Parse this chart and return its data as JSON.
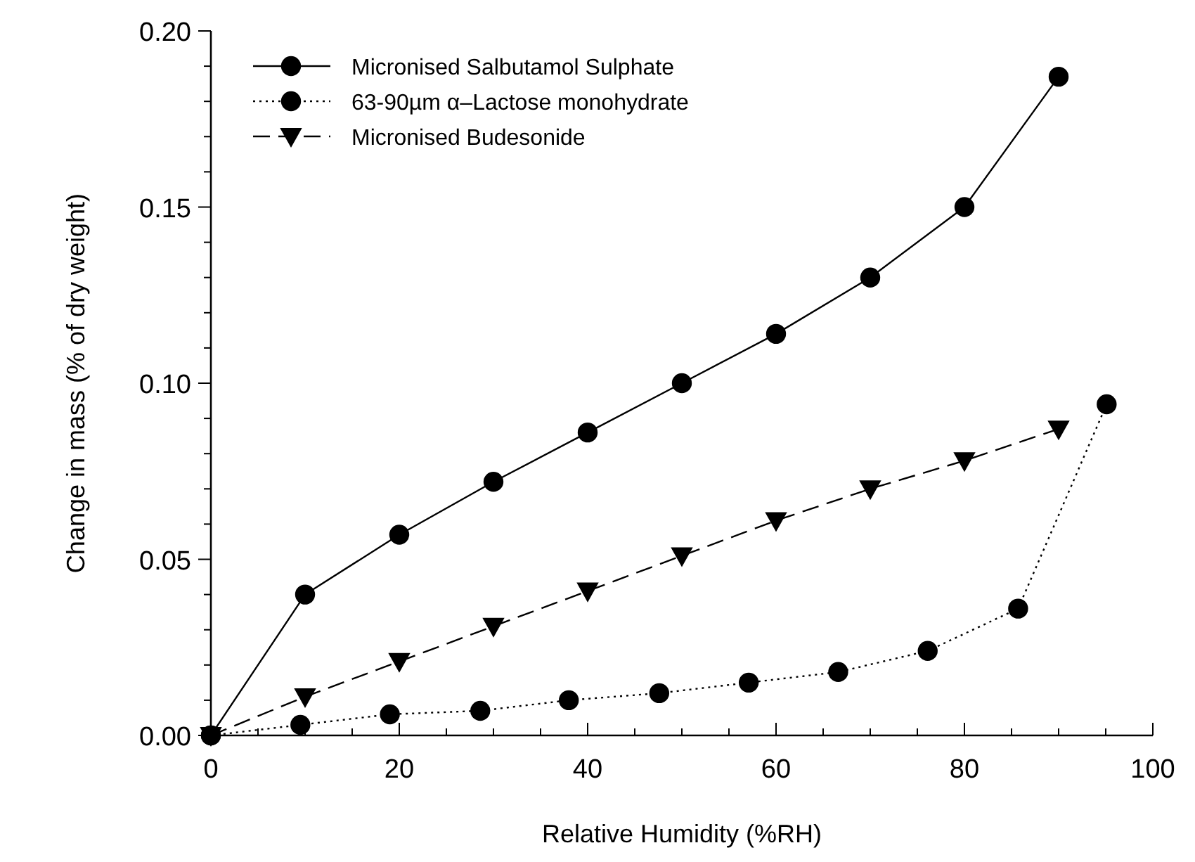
{
  "chart_data": {
    "type": "line",
    "xlabel": "Relative Humidity (%RH)",
    "ylabel": "Change in mass (% of dry weight)",
    "xlim": [
      0,
      100
    ],
    "ylim": [
      0,
      0.2
    ],
    "xticks": [
      0,
      {
        "value": 5,
        "label": null
      },
      {
        "value": 10,
        "label": null
      },
      {
        "value": 15,
        "label": null
      },
      20,
      {
        "value": 25,
        "label": null
      },
      {
        "value": 30,
        "label": null
      },
      {
        "value": 35,
        "label": null
      },
      40,
      {
        "value": 45,
        "label": null
      },
      {
        "value": 50,
        "label": null
      },
      {
        "value": 55,
        "label": null
      },
      60,
      {
        "value": 65,
        "label": null
      },
      {
        "value": 70,
        "label": null
      },
      {
        "value": 75,
        "label": null
      },
      80,
      {
        "value": 85,
        "label": null
      },
      {
        "value": 90,
        "label": null
      },
      {
        "value": 95,
        "label": null
      },
      100
    ],
    "yticks": [
      {
        "value": 0,
        "label": "0.00"
      },
      {
        "value": 0.01,
        "label": null
      },
      {
        "value": 0.02,
        "label": null
      },
      {
        "value": 0.03,
        "label": null
      },
      {
        "value": 0.04,
        "label": null
      },
      {
        "value": 0.05,
        "label": "0.05"
      },
      {
        "value": 0.06,
        "label": null
      },
      {
        "value": 0.07,
        "label": null
      },
      {
        "value": 0.08,
        "label": null
      },
      {
        "value": 0.09,
        "label": null
      },
      {
        "value": 0.1,
        "label": "0.10"
      },
      {
        "value": 0.11,
        "label": null
      },
      {
        "value": 0.12,
        "label": null
      },
      {
        "value": 0.13,
        "label": null
      },
      {
        "value": 0.14,
        "label": null
      },
      {
        "value": 0.15,
        "label": "0.15"
      },
      {
        "value": 0.16,
        "label": null
      },
      {
        "value": 0.17,
        "label": null
      },
      {
        "value": 0.18,
        "label": null
      },
      {
        "value": 0.19,
        "label": null
      },
      {
        "value": 0.2,
        "label": "0.20"
      }
    ],
    "grid": false,
    "legend": "top left",
    "series": [
      {
        "name": "Micronised Salbutamol Sulphate",
        "color": "#000000",
        "marker": "circle",
        "line_style": "solid",
        "x": [
          0,
          10,
          20,
          30,
          40,
          50,
          60,
          70,
          80,
          90
        ],
        "values": [
          0,
          0.04,
          0.057,
          0.072,
          0.086,
          0.1,
          0.114,
          0.13,
          0.15,
          0.187
        ]
      },
      {
        "name": "63-90µm α–Lactose monohydrate",
        "color": "#000000",
        "marker": "circle",
        "line_style": "dotted",
        "x": [
          0,
          9.5,
          19,
          28.6,
          38,
          47.6,
          57.1,
          66.6,
          76.1,
          85.7,
          95.1
        ],
        "values": [
          0,
          0.003,
          0.006,
          0.007,
          0.01,
          0.012,
          0.015,
          0.018,
          0.024,
          0.036,
          0.094
        ]
      },
      {
        "name": "Micronised Budesonide",
        "color": "#000000",
        "marker": "triangle",
        "line_style": "dashed",
        "x": [
          0,
          10,
          20,
          30,
          40,
          50,
          60,
          70,
          80,
          90
        ],
        "values": [
          0,
          0.011,
          0.021,
          0.031,
          0.041,
          0.051,
          0.061,
          0.07,
          0.078,
          0.087
        ]
      }
    ]
  }
}
